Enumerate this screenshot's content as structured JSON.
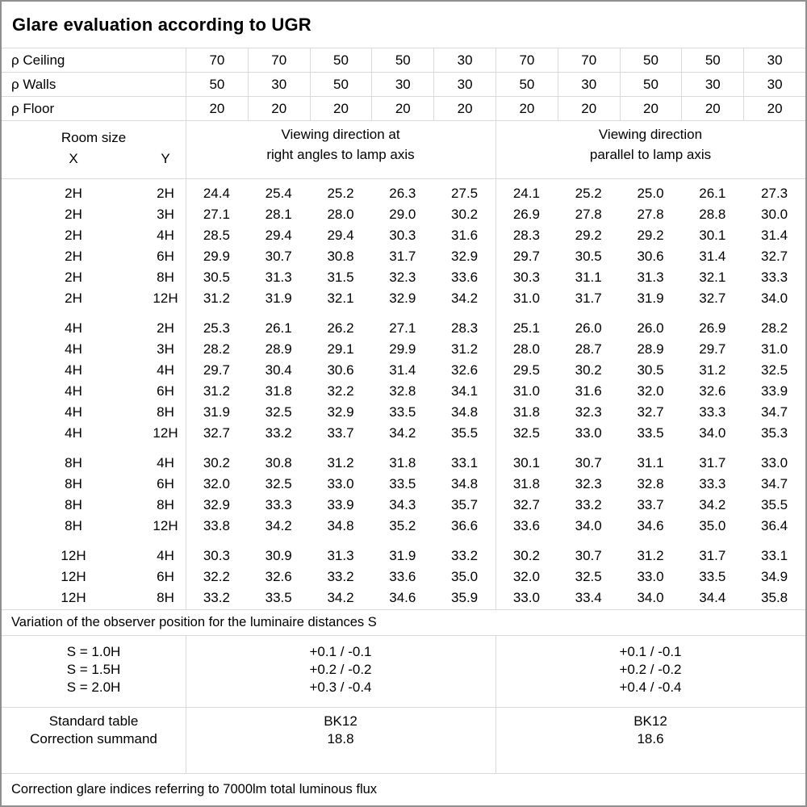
{
  "title": "Glare evaluation according to UGR",
  "colors": {
    "outer_border": "#8f8f8f",
    "grid_line": "#d9d9d9",
    "text": "#000000",
    "background": "#ffffff"
  },
  "reflectances": {
    "rows": [
      {
        "label": "ρ Ceiling",
        "values": [
          "70",
          "70",
          "50",
          "50",
          "30",
          "70",
          "70",
          "50",
          "50",
          "30"
        ]
      },
      {
        "label": "ρ Walls",
        "values": [
          "50",
          "30",
          "50",
          "30",
          "30",
          "50",
          "30",
          "50",
          "30",
          "30"
        ]
      },
      {
        "label": "ρ Floor",
        "values": [
          "20",
          "20",
          "20",
          "20",
          "20",
          "20",
          "20",
          "20",
          "20",
          "20"
        ]
      }
    ]
  },
  "header": {
    "room_size": "Room size",
    "x_label": "X",
    "y_label": "Y",
    "right_angles_heading": [
      "Viewing direction at",
      "right angles to lamp axis"
    ],
    "parallel_heading": [
      "Viewing direction",
      "parallel to lamp axis"
    ]
  },
  "ugr_blocks": [
    {
      "rows": [
        {
          "x": "2H",
          "y": "2H",
          "right_angles": [
            "24.4",
            "25.4",
            "25.2",
            "26.3",
            "27.5"
          ],
          "parallel": [
            "24.1",
            "25.2",
            "25.0",
            "26.1",
            "27.3"
          ]
        },
        {
          "x": "2H",
          "y": "3H",
          "right_angles": [
            "27.1",
            "28.1",
            "28.0",
            "29.0",
            "30.2"
          ],
          "parallel": [
            "26.9",
            "27.8",
            "27.8",
            "28.8",
            "30.0"
          ]
        },
        {
          "x": "2H",
          "y": "4H",
          "right_angles": [
            "28.5",
            "29.4",
            "29.4",
            "30.3",
            "31.6"
          ],
          "parallel": [
            "28.3",
            "29.2",
            "29.2",
            "30.1",
            "31.4"
          ]
        },
        {
          "x": "2H",
          "y": "6H",
          "right_angles": [
            "29.9",
            "30.7",
            "30.8",
            "31.7",
            "32.9"
          ],
          "parallel": [
            "29.7",
            "30.5",
            "30.6",
            "31.4",
            "32.7"
          ]
        },
        {
          "x": "2H",
          "y": "8H",
          "right_angles": [
            "30.5",
            "31.3",
            "31.5",
            "32.3",
            "33.6"
          ],
          "parallel": [
            "30.3",
            "31.1",
            "31.3",
            "32.1",
            "33.3"
          ]
        },
        {
          "x": "2H",
          "y": "12H",
          "right_angles": [
            "31.2",
            "31.9",
            "32.1",
            "32.9",
            "34.2"
          ],
          "parallel": [
            "31.0",
            "31.7",
            "31.9",
            "32.7",
            "34.0"
          ]
        }
      ]
    },
    {
      "rows": [
        {
          "x": "4H",
          "y": "2H",
          "right_angles": [
            "25.3",
            "26.1",
            "26.2",
            "27.1",
            "28.3"
          ],
          "parallel": [
            "25.1",
            "26.0",
            "26.0",
            "26.9",
            "28.2"
          ]
        },
        {
          "x": "4H",
          "y": "3H",
          "right_angles": [
            "28.2",
            "28.9",
            "29.1",
            "29.9",
            "31.2"
          ],
          "parallel": [
            "28.0",
            "28.7",
            "28.9",
            "29.7",
            "31.0"
          ]
        },
        {
          "x": "4H",
          "y": "4H",
          "right_angles": [
            "29.7",
            "30.4",
            "30.6",
            "31.4",
            "32.6"
          ],
          "parallel": [
            "29.5",
            "30.2",
            "30.5",
            "31.2",
            "32.5"
          ]
        },
        {
          "x": "4H",
          "y": "6H",
          "right_angles": [
            "31.2",
            "31.8",
            "32.2",
            "32.8",
            "34.1"
          ],
          "parallel": [
            "31.0",
            "31.6",
            "32.0",
            "32.6",
            "33.9"
          ]
        },
        {
          "x": "4H",
          "y": "8H",
          "right_angles": [
            "31.9",
            "32.5",
            "32.9",
            "33.5",
            "34.8"
          ],
          "parallel": [
            "31.8",
            "32.3",
            "32.7",
            "33.3",
            "34.7"
          ]
        },
        {
          "x": "4H",
          "y": "12H",
          "right_angles": [
            "32.7",
            "33.2",
            "33.7",
            "34.2",
            "35.5"
          ],
          "parallel": [
            "32.5",
            "33.0",
            "33.5",
            "34.0",
            "35.3"
          ]
        }
      ]
    },
    {
      "rows": [
        {
          "x": "8H",
          "y": "4H",
          "right_angles": [
            "30.2",
            "30.8",
            "31.2",
            "31.8",
            "33.1"
          ],
          "parallel": [
            "30.1",
            "30.7",
            "31.1",
            "31.7",
            "33.0"
          ]
        },
        {
          "x": "8H",
          "y": "6H",
          "right_angles": [
            "32.0",
            "32.5",
            "33.0",
            "33.5",
            "34.8"
          ],
          "parallel": [
            "31.8",
            "32.3",
            "32.8",
            "33.3",
            "34.7"
          ]
        },
        {
          "x": "8H",
          "y": "8H",
          "right_angles": [
            "32.9",
            "33.3",
            "33.9",
            "34.3",
            "35.7"
          ],
          "parallel": [
            "32.7",
            "33.2",
            "33.7",
            "34.2",
            "35.5"
          ]
        },
        {
          "x": "8H",
          "y": "12H",
          "right_angles": [
            "33.8",
            "34.2",
            "34.8",
            "35.2",
            "36.6"
          ],
          "parallel": [
            "33.6",
            "34.0",
            "34.6",
            "35.0",
            "36.4"
          ]
        }
      ]
    },
    {
      "rows": [
        {
          "x": "12H",
          "y": "4H",
          "right_angles": [
            "30.3",
            "30.9",
            "31.3",
            "31.9",
            "33.2"
          ],
          "parallel": [
            "30.2",
            "30.7",
            "31.2",
            "31.7",
            "33.1"
          ]
        },
        {
          "x": "12H",
          "y": "6H",
          "right_angles": [
            "32.2",
            "32.6",
            "33.2",
            "33.6",
            "35.0"
          ],
          "parallel": [
            "32.0",
            "32.5",
            "33.0",
            "33.5",
            "34.9"
          ]
        },
        {
          "x": "12H",
          "y": "8H",
          "right_angles": [
            "33.2",
            "33.5",
            "34.2",
            "34.6",
            "35.9"
          ],
          "parallel": [
            "33.0",
            "33.4",
            "34.0",
            "34.4",
            "35.8"
          ]
        }
      ]
    }
  ],
  "variation_note": "Variation of the observer position for the luminaire distances S",
  "variation_rows": [
    {
      "label": "S = 1.0H",
      "right_angles": "+0.1 / -0.1",
      "parallel": "+0.1 / -0.1"
    },
    {
      "label": "S = 1.5H",
      "right_angles": "+0.2 / -0.2",
      "parallel": "+0.2 / -0.2"
    },
    {
      "label": "S = 2.0H",
      "right_angles": "+0.3 / -0.4",
      "parallel": "+0.4 / -0.4"
    }
  ],
  "standard": {
    "row_labels": [
      "Standard table",
      "Correction summand"
    ],
    "right_angles": [
      "BK12",
      "18.8"
    ],
    "parallel": [
      "BK12",
      "18.6"
    ]
  },
  "footer_note": "Correction glare indices referring to 7000lm total luminous flux"
}
